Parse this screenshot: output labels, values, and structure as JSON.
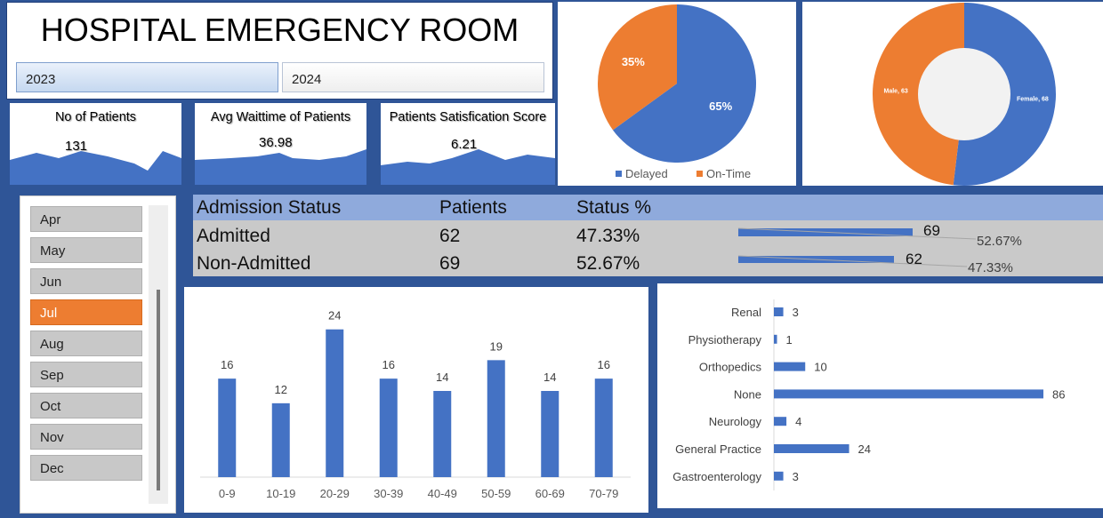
{
  "header": {
    "title": "HOSPITAL EMERGENCY ROOM",
    "years": [
      "2023",
      "2024"
    ],
    "selected_year": "2023"
  },
  "kpis": [
    {
      "label": "No of Patients",
      "value": "131"
    },
    {
      "label": "Avg Waittime of Patients",
      "value": "36.98"
    },
    {
      "label": "Patients Satisfication Score",
      "value": "6.21"
    }
  ],
  "months": {
    "items": [
      "Apr",
      "May",
      "Jun",
      "Jul",
      "Aug",
      "Sep",
      "Oct",
      "Nov",
      "Dec"
    ],
    "selected": "Jul"
  },
  "admission": {
    "headers": [
      "Admission Status",
      "Patients",
      "Status %"
    ],
    "rows": [
      {
        "status": "Admitted",
        "patients": "62",
        "percent": "47.33%",
        "bar_value": "69",
        "bar_pct": "52.67%"
      },
      {
        "status": "Non-Admitted",
        "patients": "69",
        "percent": "52.67%",
        "bar_value": "62",
        "bar_pct": "47.33%"
      }
    ]
  },
  "colors": {
    "background": "#2f5597",
    "blue": "#4472c4",
    "orange": "#ed7d31",
    "header_blue": "#8faadc",
    "row_gray": "#c9c9c9"
  },
  "chart_data": [
    {
      "type": "pie",
      "categories": [
        "Delayed",
        "On-Time"
      ],
      "values": [
        65,
        35
      ],
      "labels": [
        "65%",
        "35%"
      ],
      "legend": "bottom"
    },
    {
      "type": "pie",
      "variant": "donut",
      "categories": [
        "Female",
        "Male"
      ],
      "values": [
        68,
        63
      ],
      "labels": [
        "Female, 68",
        "Male, 63"
      ]
    },
    {
      "type": "bar",
      "categories": [
        "0-9",
        "10-19",
        "20-29",
        "30-39",
        "40-49",
        "50-59",
        "60-69",
        "70-79"
      ],
      "values": [
        16,
        12,
        24,
        16,
        14,
        19,
        14,
        16
      ],
      "ylim": [
        0,
        28
      ]
    },
    {
      "type": "bar",
      "orientation": "horizontal",
      "categories": [
        "Renal",
        "Physiotherapy",
        "Orthopedics",
        "None",
        "Neurology",
        "General Practice",
        "Gastroenterology"
      ],
      "values": [
        3,
        1,
        10,
        86,
        4,
        24,
        3
      ],
      "xlim": [
        0,
        86
      ]
    }
  ]
}
